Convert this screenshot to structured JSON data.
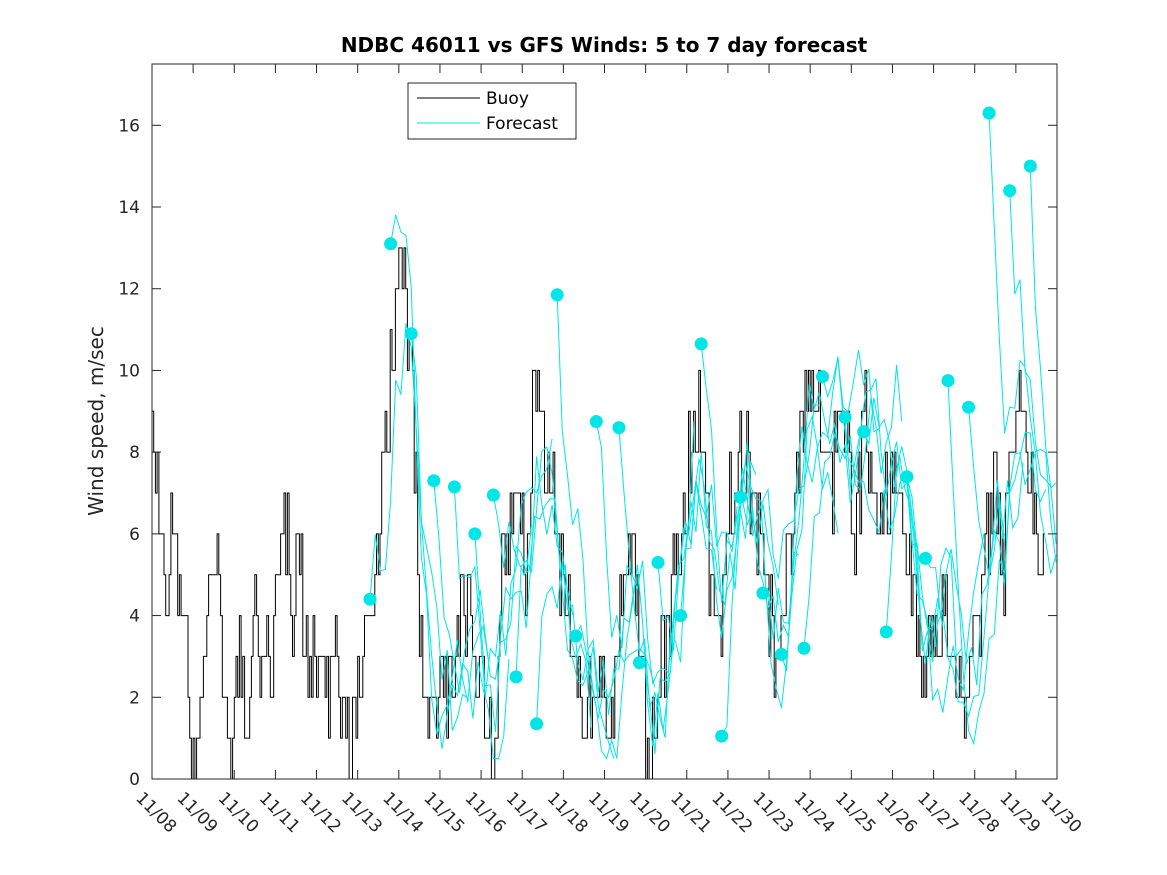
{
  "chart_data": {
    "type": "line",
    "title": "NDBC 46011 vs GFS Winds: 5 to 7 day forecast",
    "xlabel": "",
    "ylabel": "Wind speed, m/sec",
    "xlim": [
      0,
      22
    ],
    "ylim": [
      0,
      17.5
    ],
    "x_tick_labels": [
      "11/08",
      "11/09",
      "11/10",
      "11/11",
      "11/12",
      "11/13",
      "11/14",
      "11/15",
      "11/16",
      "11/17",
      "11/18",
      "11/19",
      "11/20",
      "11/21",
      "11/22",
      "11/23",
      "11/24",
      "11/25",
      "11/26",
      "11/27",
      "11/28",
      "11/29",
      "11/30"
    ],
    "y_ticks": [
      0,
      2,
      4,
      6,
      8,
      10,
      12,
      14,
      16
    ],
    "legend": {
      "position": "top-center",
      "entries": [
        {
          "name": "Buoy",
          "color": "#000000"
        },
        {
          "name": "Forecast",
          "color": "#00e5e5"
        }
      ]
    },
    "buoy_key_points": {
      "x": [
        0,
        0.15,
        0.35,
        0.5,
        0.7,
        0.85,
        1.0,
        1.2,
        1.4,
        1.55,
        1.7,
        1.9,
        2.1,
        2.3,
        2.5,
        2.7,
        2.9,
        3.0,
        3.2,
        3.4,
        3.6,
        3.8,
        4.0,
        4.2,
        4.4,
        4.6,
        4.8,
        5.0,
        5.15,
        5.3,
        5.5,
        5.7,
        5.9,
        6.0,
        6.1,
        6.3,
        6.5,
        6.7,
        6.9,
        7.1,
        7.3,
        7.5,
        7.7,
        7.9,
        8.1,
        8.3,
        8.5,
        8.7,
        8.9,
        9.1,
        9.3,
        9.5,
        9.7,
        9.9,
        10.1,
        10.3,
        10.5,
        10.7,
        10.9,
        11.1,
        11.3,
        11.5,
        11.7,
        11.9,
        12.1,
        12.3,
        12.5,
        12.7,
        12.9,
        13.1,
        13.3,
        13.5,
        13.7,
        13.9,
        14.1,
        14.3,
        14.5,
        14.7,
        14.9,
        15.1,
        15.3,
        15.5,
        15.7,
        15.9,
        16.1,
        16.3,
        16.5,
        16.7,
        16.9,
        17.1,
        17.3,
        17.5,
        17.7,
        17.9,
        18.1,
        18.3,
        18.5,
        18.7,
        18.9,
        19.1,
        19.3,
        19.5,
        19.7,
        19.9,
        20.1,
        20.3,
        20.5,
        20.7,
        20.9,
        21.1,
        21.3,
        21.5,
        21.7
      ],
      "y": [
        9,
        7,
        5,
        6,
        5,
        3,
        0,
        2,
        4,
        6,
        3,
        1,
        3,
        2,
        4,
        3,
        3,
        4,
        7,
        4,
        5,
        3,
        3,
        2,
        3,
        2,
        0,
        3,
        4,
        4,
        6,
        9,
        11,
        12,
        13,
        10,
        4,
        2,
        1,
        3,
        2,
        4,
        4,
        3,
        2,
        0,
        5,
        6,
        7,
        5,
        10,
        8,
        7,
        5,
        4,
        3,
        1,
        2,
        3,
        1,
        3,
        5,
        6,
        3,
        0,
        2,
        3,
        5,
        6,
        8,
        9,
        6,
        3,
        5,
        7,
        8,
        8,
        6,
        5,
        3,
        4,
        6,
        8,
        9,
        10,
        8,
        7,
        9,
        8,
        6,
        9,
        8,
        6,
        7,
        8,
        6,
        5,
        2,
        3,
        4,
        4,
        3,
        1,
        3,
        4,
        6,
        7,
        5,
        8,
        9,
        7,
        6,
        5
      ]
    },
    "forecast_markers": {
      "x": [
        5.3,
        5.8,
        6.3,
        6.85,
        7.35,
        7.85,
        8.3,
        8.85,
        9.35,
        9.85,
        10.3,
        10.8,
        11.35,
        11.85,
        12.3,
        12.85,
        13.35,
        13.85,
        14.3,
        14.85,
        15.3,
        15.85,
        16.3,
        16.85,
        17.3,
        17.85,
        18.35,
        18.8,
        19.35,
        19.85,
        20.35,
        20.85,
        21.35
      ],
      "y": [
        4.4,
        13.1,
        10.9,
        7.3,
        7.15,
        6.0,
        6.95,
        2.5,
        1.35,
        11.85,
        3.5,
        8.75,
        8.6,
        2.85,
        5.3,
        4.0,
        10.65,
        1.05,
        6.9,
        4.55,
        3.05,
        3.2,
        9.85,
        8.85,
        8.5,
        3.6,
        7.4,
        5.4,
        9.75,
        9.1,
        16.3,
        14.4,
        15.0
      ]
    }
  }
}
